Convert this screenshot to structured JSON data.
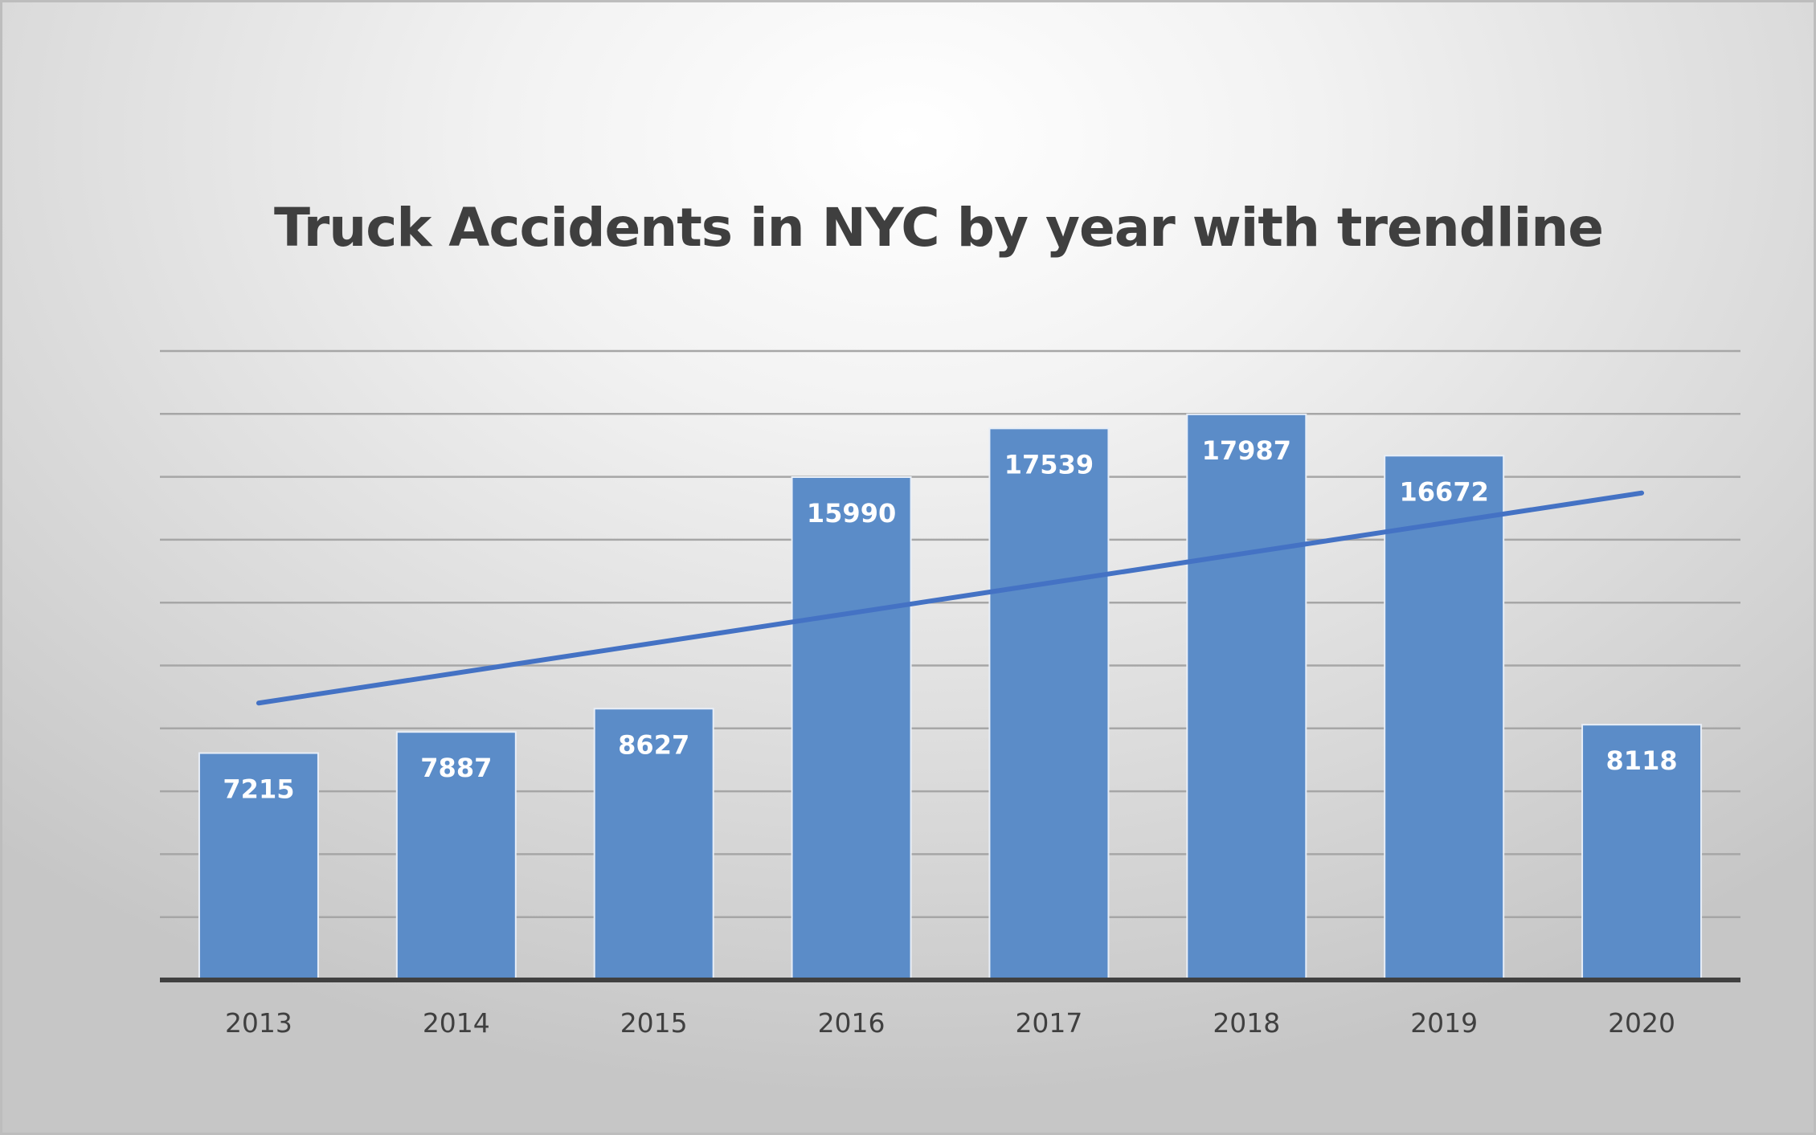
{
  "chart_data": {
    "type": "bar",
    "title": "Truck Accidents in NYC by year with trendline",
    "xlabel": "",
    "ylabel": "",
    "categories": [
      "2013",
      "2014",
      "2015",
      "2016",
      "2017",
      "2018",
      "2019",
      "2020"
    ],
    "values": [
      7215,
      7887,
      8627,
      15990,
      17539,
      17987,
      16672,
      8118
    ],
    "ylim": [
      0,
      20000
    ],
    "y_gridlines": [
      2000,
      4000,
      6000,
      8000,
      10000,
      12000,
      14000,
      16000,
      18000,
      20000
    ],
    "y_tick_labels_shown": false,
    "data_labels": true,
    "legend": "none",
    "grid": true,
    "trendline": {
      "type": "linear",
      "start_value": 8806,
      "end_value": 15485
    },
    "colors": {
      "bar": "#5b8cc8",
      "bar_edge": "#e8eef7",
      "trendline": "#4472c4",
      "gridline": "#a6a6a6",
      "axis": "#404040",
      "title": "#3f3f3f"
    }
  }
}
